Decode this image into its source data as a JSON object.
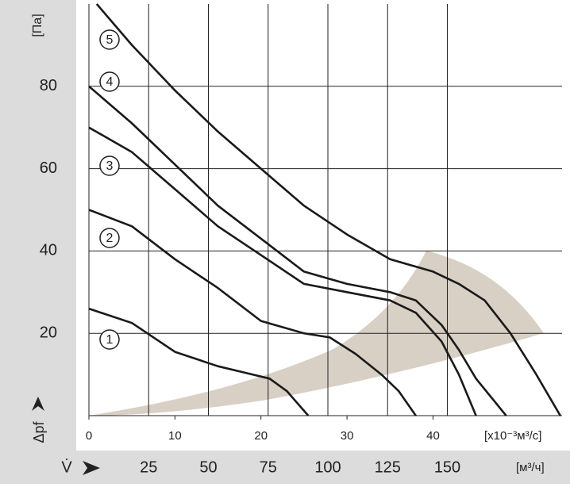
{
  "chart_data": {
    "type": "line",
    "y_label": "Δpf",
    "y_unit": "[Па]",
    "x_unit": "[x10⁻³м³/с]",
    "x2_label": "V̇",
    "x2_unit": "[м³/ч]",
    "xlim": [
      0,
      55
    ],
    "xticks": [
      0,
      10,
      20,
      30,
      40
    ],
    "ylim": [
      0,
      100
    ],
    "yticks": [
      20,
      40,
      60,
      80
    ],
    "x2lim": [
      0,
      198
    ],
    "x2ticks": [
      25,
      50,
      75,
      100,
      125,
      150
    ],
    "grid": true,
    "series": [
      {
        "name": "1",
        "color": "#1a1a1a",
        "x": [
          0,
          5,
          10,
          15,
          18,
          21,
          23,
          25.5
        ],
        "values": [
          26,
          22.5,
          15.5,
          12,
          10.5,
          9,
          6,
          0
        ]
      },
      {
        "name": "2",
        "color": "#1a1a1a",
        "x": [
          0,
          5,
          10,
          15,
          20,
          25,
          28,
          31,
          34,
          36,
          38
        ],
        "values": [
          50,
          46,
          38,
          31,
          23,
          20,
          19,
          15,
          10,
          6,
          0
        ]
      },
      {
        "name": "3",
        "color": "#1a1a1a",
        "x": [
          0,
          5,
          10,
          15,
          20,
          25,
          30,
          35,
          38,
          41,
          43,
          45
        ],
        "values": [
          70,
          64,
          55,
          46,
          39,
          32,
          30,
          28,
          25,
          18,
          10,
          0
        ]
      },
      {
        "name": "4",
        "color": "#1a1a1a",
        "x": [
          0,
          5,
          10,
          15,
          20,
          25,
          30,
          35,
          38,
          41,
          43,
          45,
          48.5
        ],
        "values": [
          80,
          71,
          61,
          51,
          43,
          35,
          32,
          30,
          28,
          22,
          16,
          9,
          0
        ]
      },
      {
        "name": "5",
        "color": "#1a1a1a",
        "x": [
          0.9,
          5,
          10,
          15,
          20,
          25,
          30,
          35,
          40,
          43,
          46,
          49,
          52,
          54.8
        ],
        "values": [
          100,
          90,
          79,
          69,
          60,
          51,
          44,
          38,
          35,
          32,
          28,
          20,
          10,
          0
        ]
      }
    ]
  }
}
